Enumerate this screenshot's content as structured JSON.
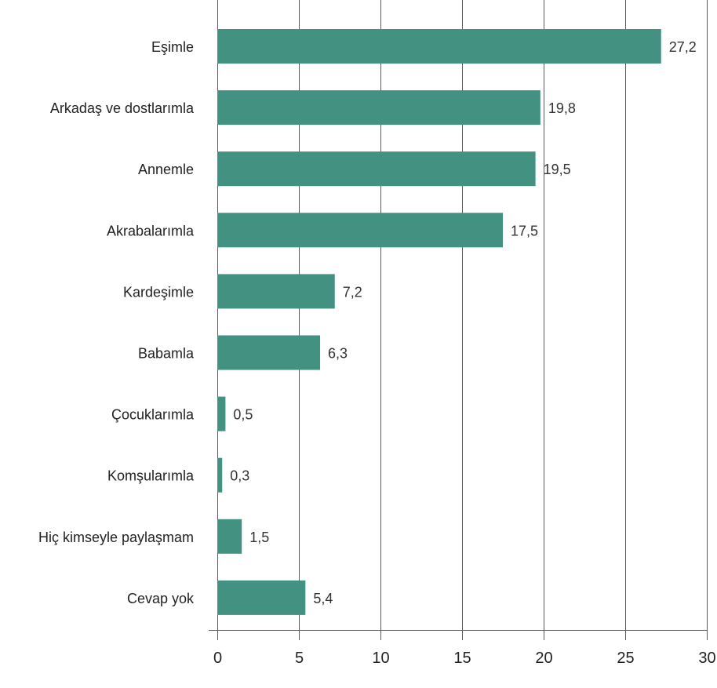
{
  "chart_data": {
    "type": "bar",
    "orientation": "horizontal",
    "title": "",
    "xlabel": "",
    "ylabel": "",
    "categories": [
      "Eşimle",
      "Arkadaş ve dostlarımla",
      "Annemle",
      "Akrabalarımla",
      "Kardeşimle",
      "Babamla",
      "Çocuklarımla",
      "Komşularımla",
      "Hiç kimseyle paylaşmam",
      "Cevap yok"
    ],
    "values": [
      27.2,
      19.8,
      19.5,
      17.5,
      7.2,
      6.3,
      0.5,
      0.3,
      1.5,
      5.4
    ],
    "value_labels": [
      "27,2",
      "19,8",
      "19,5",
      "17,5",
      "7,2",
      "6,3",
      "0,5",
      "0,3",
      "1,5",
      "5,4"
    ],
    "xlim": [
      0,
      30
    ],
    "xticks": [
      0,
      5,
      10,
      15,
      20,
      25,
      30
    ],
    "xtick_labels": [
      "0",
      "5",
      "10",
      "15",
      "20",
      "25",
      "30"
    ],
    "grid": "vertical",
    "legend": "none",
    "colors": {
      "bar": "#429181",
      "grid": "#5a5a5a",
      "text": "#222222",
      "value_text": "#333333"
    }
  }
}
